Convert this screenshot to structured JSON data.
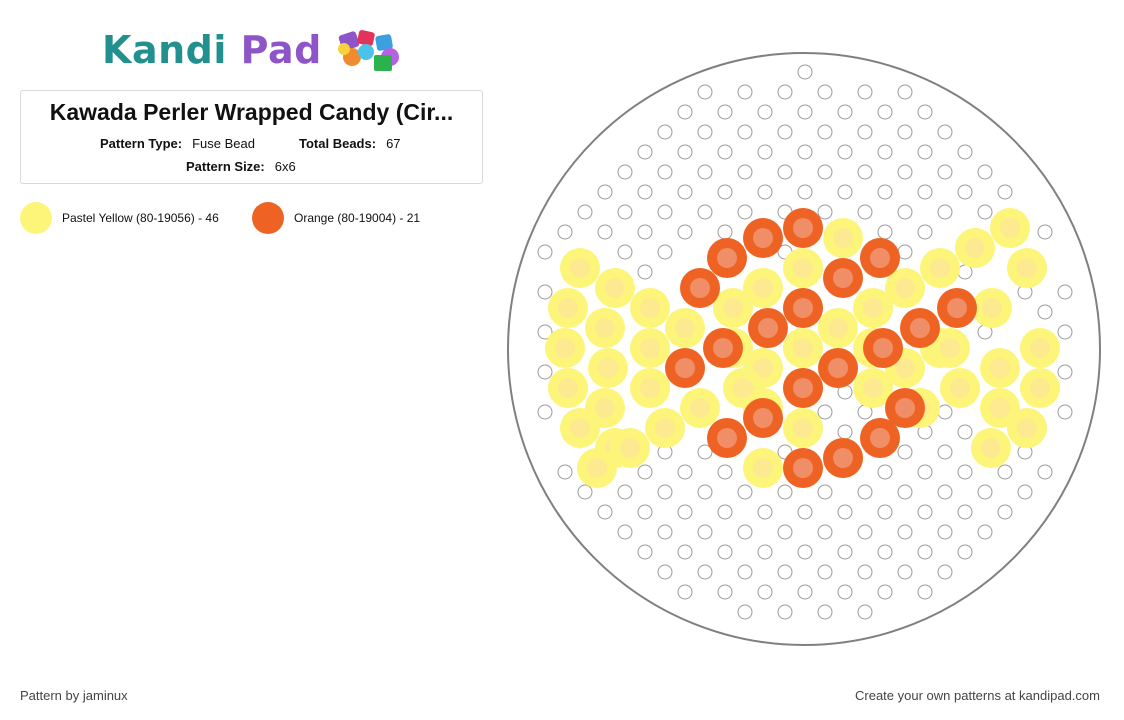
{
  "logo": {
    "part1": "Kandi",
    "part2": "Pad"
  },
  "pattern": {
    "title": "Kawada Perler Wrapped Candy (Cir...",
    "type_label": "Pattern Type:",
    "type_value": "Fuse Bead",
    "beads_label": "Total Beads:",
    "beads_value": "67",
    "size_label": "Pattern Size:",
    "size_value": "6x6"
  },
  "legend": [
    {
      "name": "Pastel Yellow (80-19056) - 46",
      "color": "#fdf57a"
    },
    {
      "name": "Orange (80-19004) - 21",
      "color": "#ee6323"
    }
  ],
  "footer": {
    "author": "Pattern by jaminux",
    "cta": "Create your own patterns at kandipad.com"
  },
  "colors": {
    "empty_peg": "#9a9a9a",
    "board_border": "#808080",
    "yellow_center": "#fde98f",
    "orange_center": "#f08e68"
  }
}
